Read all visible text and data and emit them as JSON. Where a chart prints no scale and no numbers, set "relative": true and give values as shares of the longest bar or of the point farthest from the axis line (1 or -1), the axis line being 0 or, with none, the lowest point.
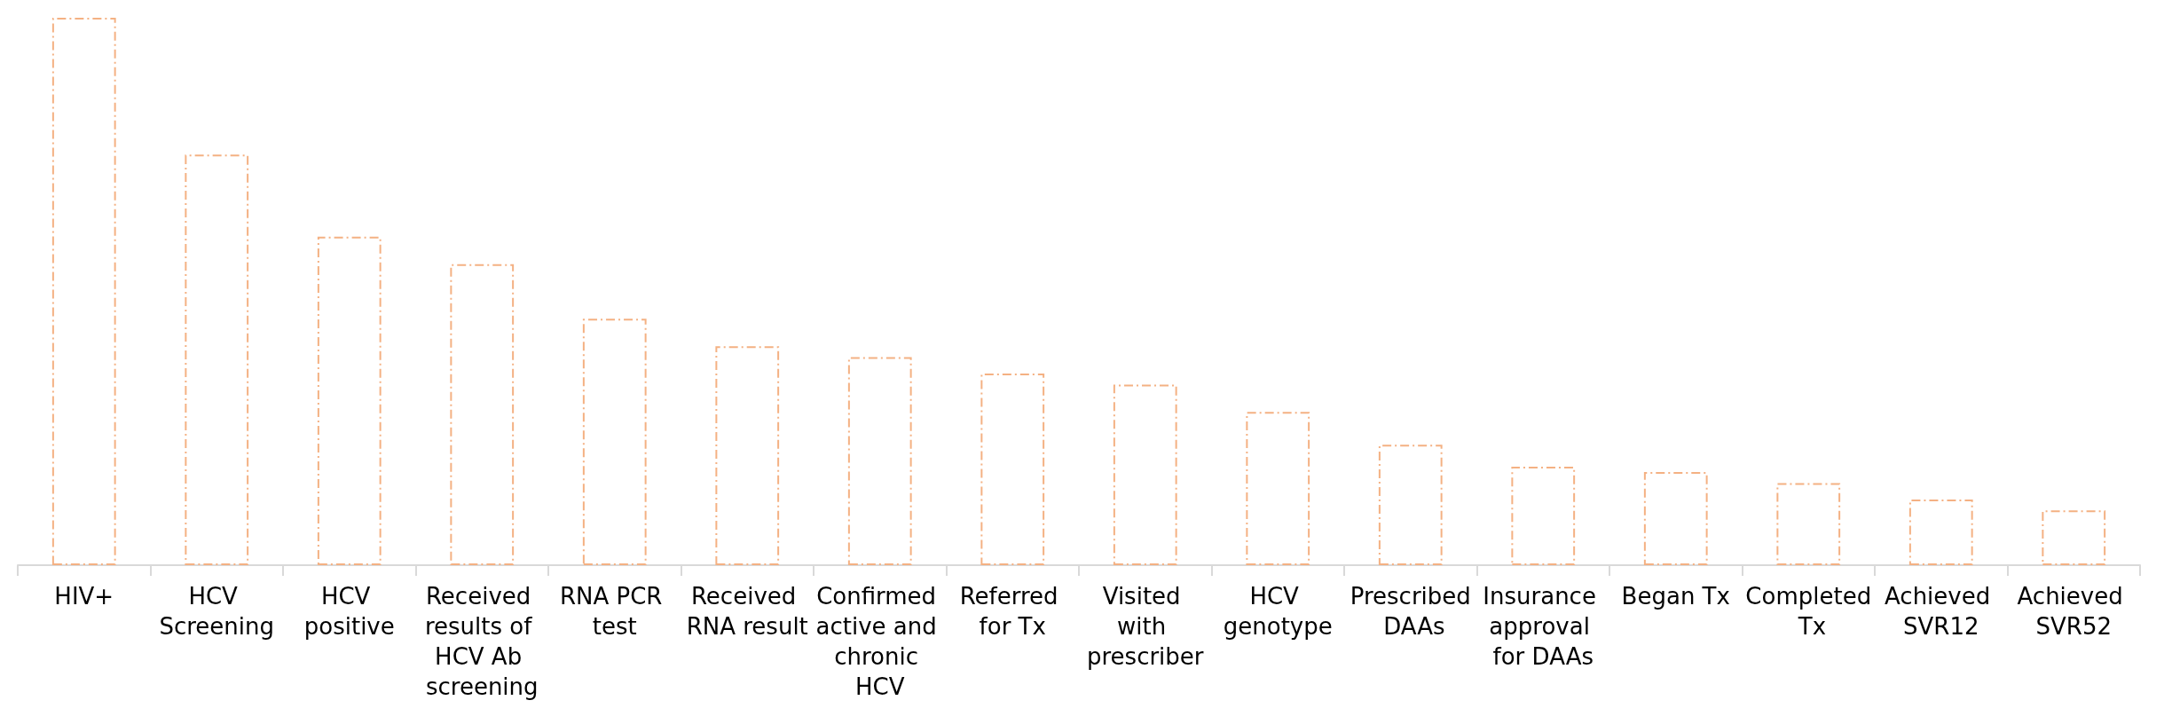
{
  "chart_data": {
    "type": "bar",
    "relative": true,
    "color": "#f4b183",
    "categories": [
      "HIV+",
      "HCV Screening",
      "HCV positive",
      "Received results of HCV Ab screening",
      "RNA PCR test",
      "Received RNA result",
      "Confirmed active and chronic HCV",
      "Referred for Tx",
      "Visited with prescriber",
      "HCV genotype",
      "Prescribed DAAs",
      "Insurance approval for DAAs",
      "Began Tx",
      "Completed Tx",
      "Achieved SVR12",
      "Achieved SVR52"
    ],
    "values": [
      1,
      0.75,
      0.6,
      0.55,
      0.45,
      0.4,
      0.38,
      0.35,
      0.33,
      0.28,
      0.22,
      0.18,
      0.17,
      0.15,
      0.12,
      0.1
    ]
  }
}
